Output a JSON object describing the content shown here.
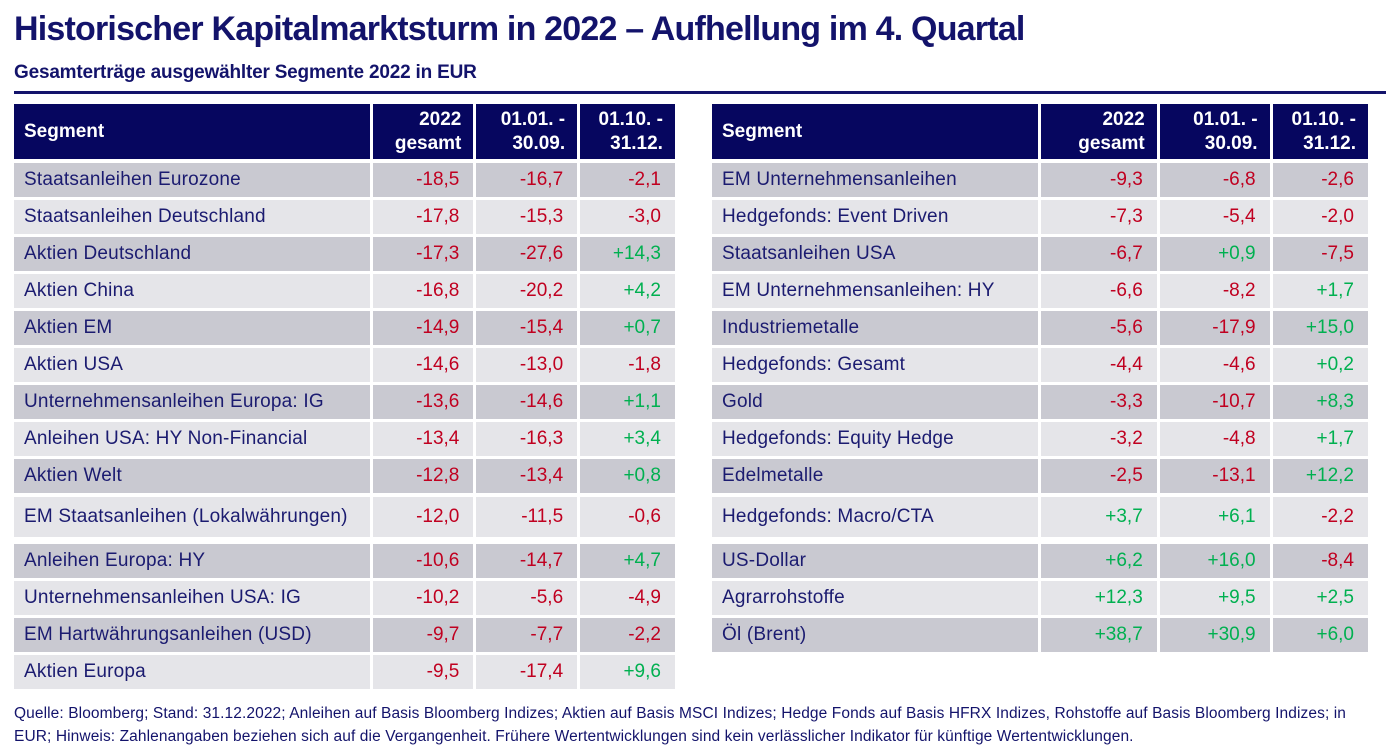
{
  "title": "Historischer Kapitalmarktsturm in 2022 – Aufhellung im 4. Quartal",
  "subtitle": "Gesamterträge ausgewählter Segmente 2022 in EUR",
  "colors": {
    "navy_text": "#1b1b70",
    "header_bg": "#06065f",
    "header_text": "#ffffff",
    "row_dark": "#c9c9d1",
    "row_light": "#e5e5e9",
    "negative": "#c00020",
    "positive": "#00b050"
  },
  "columns": [
    "Segment",
    "2022\ngesamt",
    "01.01. -\n30.09.",
    "01.10. -\n31.12."
  ],
  "tables": [
    {
      "name": "left",
      "rows": [
        {
          "label": "Staatsanleihen Eurozone",
          "values": [
            "-18,5",
            "-16,7",
            "-2,1"
          ]
        },
        {
          "label": "Staatsanleihen Deutschland",
          "values": [
            "-17,8",
            "-15,3",
            "-3,0"
          ]
        },
        {
          "label": "Aktien Deutschland",
          "values": [
            "-17,3",
            "-27,6",
            "+14,3"
          ]
        },
        {
          "label": "Aktien China",
          "values": [
            "-16,8",
            "-20,2",
            "+4,2"
          ]
        },
        {
          "label": "Aktien EM",
          "values": [
            "-14,9",
            "-15,4",
            "+0,7"
          ]
        },
        {
          "label": "Aktien USA",
          "values": [
            "-14,6",
            "-13,0",
            "-1,8"
          ]
        },
        {
          "label": "Unternehmensanleihen Europa: IG",
          "values": [
            "-13,6",
            "-14,6",
            "+1,1"
          ]
        },
        {
          "label": "Anleihen USA: HY Non-Financial",
          "values": [
            "-13,4",
            "-16,3",
            "+3,4"
          ]
        },
        {
          "label": "Aktien Welt",
          "values": [
            "-12,8",
            "-13,4",
            "+0,8"
          ]
        },
        {
          "label": "EM Staatsanleihen (Lokalwährungen)",
          "values": [
            "-12,0",
            "-11,5",
            "-0,6"
          ],
          "tall": true
        },
        {
          "label": "Anleihen Europa: HY",
          "values": [
            "-10,6",
            "-14,7",
            "+4,7"
          ]
        },
        {
          "label": "Unternehmensanleihen USA: IG",
          "values": [
            "-10,2",
            "-5,6",
            "-4,9"
          ]
        },
        {
          "label": "EM Hartwährungsanleihen (USD)",
          "values": [
            "-9,7",
            "-7,7",
            "-2,2"
          ]
        },
        {
          "label": "Aktien Europa",
          "values": [
            "-9,5",
            "-17,4",
            "+9,6"
          ]
        }
      ]
    },
    {
      "name": "right",
      "rows": [
        {
          "label": "EM Unternehmensanleihen",
          "values": [
            "-9,3",
            "-6,8",
            "-2,6"
          ]
        },
        {
          "label": "Hedgefonds: Event Driven",
          "values": [
            "-7,3",
            "-5,4",
            "-2,0"
          ]
        },
        {
          "label": "Staatsanleihen USA",
          "values": [
            "-6,7",
            "+0,9",
            "-7,5"
          ]
        },
        {
          "label": "EM Unternehmensanleihen: HY",
          "values": [
            "-6,6",
            "-8,2",
            "+1,7"
          ]
        },
        {
          "label": "Industriemetalle",
          "values": [
            "-5,6",
            "-17,9",
            "+15,0"
          ]
        },
        {
          "label": "Hedgefonds: Gesamt",
          "values": [
            "-4,4",
            "-4,6",
            "+0,2"
          ]
        },
        {
          "label": "Gold",
          "values": [
            "-3,3",
            "-10,7",
            "+8,3"
          ]
        },
        {
          "label": "Hedgefonds: Equity Hedge",
          "values": [
            "-3,2",
            "-4,8",
            "+1,7"
          ]
        },
        {
          "label": "Edelmetalle",
          "values": [
            "-2,5",
            "-13,1",
            "+12,2"
          ]
        },
        {
          "label": "Hedgefonds: Macro/CTA",
          "values": [
            "+3,7",
            "+6,1",
            "-2,2"
          ],
          "tall": true
        },
        {
          "label": "US-Dollar",
          "values": [
            "+6,2",
            "+16,0",
            "-8,4"
          ]
        },
        {
          "label": "Agrarrohstoffe",
          "values": [
            "+12,3",
            "+9,5",
            "+2,5"
          ]
        },
        {
          "label": "Öl (Brent)",
          "values": [
            "+38,7",
            "+30,9",
            "+6,0"
          ]
        }
      ]
    }
  ],
  "footer": "Quelle: Bloomberg; Stand: 31.12.2022; Anleihen auf Basis Bloomberg Indizes; Aktien auf Basis MSCI Indizes; Hedge Fonds auf Basis HFRX Indizes, Rohstoffe auf Basis Bloomberg Indizes; in EUR; Hinweis: Zahlenangaben beziehen sich auf die Vergangenheit. Frühere Wertentwicklungen sind kein verlässlicher Indikator für künftige Wertentwicklungen."
}
